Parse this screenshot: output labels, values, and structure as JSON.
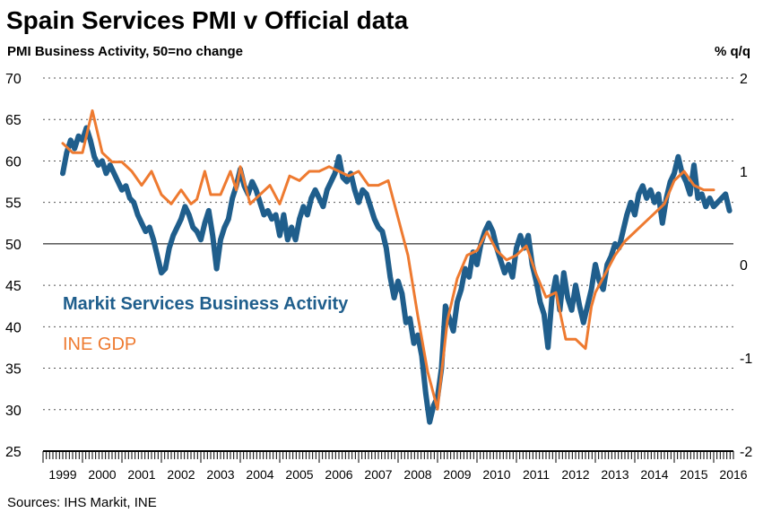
{
  "chart_data": {
    "type": "line",
    "title": "Spain Services PMI v Official data",
    "subtitle": "PMI Business Activity, 50=no change",
    "right_axis_label": "% q/q",
    "source": "Sources: IHS Markit, INE",
    "left_axis": {
      "min": 25,
      "max": 70,
      "ticks": [
        "70",
        "65",
        "60",
        "55",
        "50",
        "45",
        "40",
        "35",
        "30",
        "25"
      ]
    },
    "right_axis": {
      "min": -2,
      "max": 2,
      "ticks": [
        "2",
        "1",
        "0",
        "-1",
        "-2"
      ]
    },
    "reference_line": 50,
    "x_range": [
      1999,
      2016.5
    ],
    "years": [
      "1999",
      "2000",
      "2001",
      "2002",
      "2003",
      "2004",
      "2005",
      "2006",
      "2007",
      "2008",
      "2009",
      "2010",
      "2011",
      "2012",
      "2013",
      "2014",
      "2015",
      "2016"
    ],
    "series": [
      {
        "name": "Markit Services Business Activity",
        "axis": "left",
        "color": "#1f5e8c",
        "points": [
          [
            1999.5,
            58.5
          ],
          [
            1999.6,
            61.0
          ],
          [
            1999.7,
            62.5
          ],
          [
            1999.8,
            61.5
          ],
          [
            1999.9,
            63.0
          ],
          [
            2000.0,
            62.5
          ],
          [
            2000.1,
            64.0
          ],
          [
            2000.2,
            62.5
          ],
          [
            2000.3,
            60.5
          ],
          [
            2000.4,
            59.5
          ],
          [
            2000.5,
            60.0
          ],
          [
            2000.6,
            58.5
          ],
          [
            2000.7,
            59.5
          ],
          [
            2000.8,
            58.5
          ],
          [
            2000.9,
            57.5
          ],
          [
            2001.0,
            56.5
          ],
          [
            2001.1,
            57.0
          ],
          [
            2001.2,
            55.5
          ],
          [
            2001.3,
            55.0
          ],
          [
            2001.4,
            53.5
          ],
          [
            2001.5,
            52.5
          ],
          [
            2001.6,
            51.5
          ],
          [
            2001.7,
            52.0
          ],
          [
            2001.8,
            50.5
          ],
          [
            2001.9,
            48.5
          ],
          [
            2002.0,
            46.5
          ],
          [
            2002.1,
            47.0
          ],
          [
            2002.2,
            49.5
          ],
          [
            2002.3,
            51.0
          ],
          [
            2002.4,
            52.0
          ],
          [
            2002.5,
            53.0
          ],
          [
            2002.6,
            54.5
          ],
          [
            2002.7,
            53.5
          ],
          [
            2002.8,
            52.0
          ],
          [
            2002.9,
            51.5
          ],
          [
            2003.0,
            50.5
          ],
          [
            2003.1,
            52.5
          ],
          [
            2003.2,
            54.0
          ],
          [
            2003.3,
            51.0
          ],
          [
            2003.4,
            47.0
          ],
          [
            2003.5,
            50.5
          ],
          [
            2003.6,
            52.0
          ],
          [
            2003.7,
            53.0
          ],
          [
            2003.8,
            55.5
          ],
          [
            2003.9,
            57.0
          ],
          [
            2004.0,
            59.0
          ],
          [
            2004.1,
            57.0
          ],
          [
            2004.2,
            56.0
          ],
          [
            2004.3,
            57.5
          ],
          [
            2004.4,
            56.5
          ],
          [
            2004.5,
            55.0
          ],
          [
            2004.6,
            53.5
          ],
          [
            2004.7,
            54.0
          ],
          [
            2004.8,
            53.0
          ],
          [
            2004.9,
            53.5
          ],
          [
            2005.0,
            51.0
          ],
          [
            2005.1,
            53.5
          ],
          [
            2005.2,
            50.5
          ],
          [
            2005.3,
            52.0
          ],
          [
            2005.4,
            50.5
          ],
          [
            2005.5,
            53.0
          ],
          [
            2005.6,
            54.5
          ],
          [
            2005.7,
            53.5
          ],
          [
            2005.8,
            55.5
          ],
          [
            2005.9,
            56.5
          ],
          [
            2006.0,
            55.5
          ],
          [
            2006.1,
            54.5
          ],
          [
            2006.2,
            56.5
          ],
          [
            2006.3,
            57.5
          ],
          [
            2006.4,
            58.5
          ],
          [
            2006.5,
            60.5
          ],
          [
            2006.6,
            58.0
          ],
          [
            2006.7,
            57.5
          ],
          [
            2006.8,
            58.5
          ],
          [
            2006.9,
            56.5
          ],
          [
            2007.0,
            55.0
          ],
          [
            2007.1,
            56.5
          ],
          [
            2007.2,
            56.0
          ],
          [
            2007.3,
            54.5
          ],
          [
            2007.4,
            53.0
          ],
          [
            2007.5,
            52.0
          ],
          [
            2007.6,
            51.5
          ],
          [
            2007.7,
            49.5
          ],
          [
            2007.8,
            46.0
          ],
          [
            2007.9,
            43.5
          ],
          [
            2008.0,
            45.5
          ],
          [
            2008.1,
            44.0
          ],
          [
            2008.2,
            40.5
          ],
          [
            2008.3,
            41.0
          ],
          [
            2008.4,
            38.0
          ],
          [
            2008.5,
            39.0
          ],
          [
            2008.6,
            36.5
          ],
          [
            2008.7,
            32.0
          ],
          [
            2008.8,
            28.5
          ],
          [
            2008.9,
            30.5
          ],
          [
            2009.0,
            31.5
          ],
          [
            2009.1,
            35.0
          ],
          [
            2009.2,
            42.5
          ],
          [
            2009.3,
            41.0
          ],
          [
            2009.4,
            39.5
          ],
          [
            2009.5,
            43.0
          ],
          [
            2009.6,
            44.5
          ],
          [
            2009.7,
            47.0
          ],
          [
            2009.8,
            46.0
          ],
          [
            2009.9,
            49.0
          ],
          [
            2010.0,
            47.5
          ],
          [
            2010.1,
            50.0
          ],
          [
            2010.2,
            51.5
          ],
          [
            2010.3,
            52.5
          ],
          [
            2010.4,
            51.5
          ],
          [
            2010.5,
            49.5
          ],
          [
            2010.6,
            48.0
          ],
          [
            2010.7,
            46.5
          ],
          [
            2010.8,
            47.5
          ],
          [
            2010.9,
            46.0
          ],
          [
            2011.0,
            49.5
          ],
          [
            2011.1,
            51.0
          ],
          [
            2011.2,
            49.5
          ],
          [
            2011.3,
            51.0
          ],
          [
            2011.4,
            47.5
          ],
          [
            2011.5,
            45.5
          ],
          [
            2011.6,
            43.0
          ],
          [
            2011.7,
            41.5
          ],
          [
            2011.8,
            37.5
          ],
          [
            2011.9,
            43.5
          ],
          [
            2012.0,
            46.0
          ],
          [
            2012.1,
            42.0
          ],
          [
            2012.2,
            46.5
          ],
          [
            2012.3,
            43.5
          ],
          [
            2012.4,
            42.0
          ],
          [
            2012.5,
            45.0
          ],
          [
            2012.6,
            42.5
          ],
          [
            2012.7,
            40.5
          ],
          [
            2012.8,
            42.5
          ],
          [
            2012.9,
            44.5
          ],
          [
            2013.0,
            47.5
          ],
          [
            2013.1,
            45.5
          ],
          [
            2013.2,
            44.5
          ],
          [
            2013.3,
            47.5
          ],
          [
            2013.4,
            48.5
          ],
          [
            2013.5,
            50.0
          ],
          [
            2013.6,
            49.5
          ],
          [
            2013.7,
            51.5
          ],
          [
            2013.8,
            53.5
          ],
          [
            2013.9,
            55.0
          ],
          [
            2014.0,
            53.5
          ],
          [
            2014.1,
            56.0
          ],
          [
            2014.2,
            57.0
          ],
          [
            2014.3,
            55.5
          ],
          [
            2014.4,
            56.5
          ],
          [
            2014.5,
            55.0
          ],
          [
            2014.6,
            56.0
          ],
          [
            2014.7,
            52.5
          ],
          [
            2014.8,
            55.5
          ],
          [
            2014.9,
            57.5
          ],
          [
            2015.0,
            58.5
          ],
          [
            2015.1,
            60.5
          ],
          [
            2015.2,
            58.5
          ],
          [
            2015.3,
            57.5
          ],
          [
            2015.4,
            56.0
          ],
          [
            2015.5,
            59.5
          ],
          [
            2015.6,
            55.5
          ],
          [
            2015.7,
            56.0
          ],
          [
            2015.8,
            54.5
          ],
          [
            2015.9,
            55.5
          ],
          [
            2016.0,
            54.5
          ],
          [
            2016.1,
            55.0
          ],
          [
            2016.2,
            55.5
          ],
          [
            2016.3,
            56.0
          ],
          [
            2016.4,
            54.0
          ]
        ]
      },
      {
        "name": "INE GDP",
        "axis": "right",
        "color": "#ee7a30",
        "points": [
          [
            1999.5,
            1.3
          ],
          [
            1999.75,
            1.2
          ],
          [
            2000.0,
            1.2
          ],
          [
            2000.25,
            1.65
          ],
          [
            2000.5,
            1.2
          ],
          [
            2000.75,
            1.1
          ],
          [
            2001.0,
            1.1
          ],
          [
            2001.25,
            1.0
          ],
          [
            2001.5,
            0.85
          ],
          [
            2001.75,
            1.0
          ],
          [
            2002.0,
            0.75
          ],
          [
            2002.25,
            0.65
          ],
          [
            2002.5,
            0.8
          ],
          [
            2002.75,
            0.65
          ],
          [
            2002.9,
            0.7
          ],
          [
            2003.1,
            1.0
          ],
          [
            2003.25,
            0.75
          ],
          [
            2003.5,
            0.75
          ],
          [
            2003.75,
            1.0
          ],
          [
            2003.9,
            0.8
          ],
          [
            2004.0,
            1.05
          ],
          [
            2004.25,
            0.65
          ],
          [
            2004.5,
            0.75
          ],
          [
            2004.75,
            0.85
          ],
          [
            2005.0,
            0.65
          ],
          [
            2005.25,
            0.95
          ],
          [
            2005.5,
            0.9
          ],
          [
            2005.75,
            1.0
          ],
          [
            2006.0,
            1.0
          ],
          [
            2006.25,
            1.05
          ],
          [
            2006.5,
            1.0
          ],
          [
            2006.75,
            0.95
          ],
          [
            2007.0,
            1.0
          ],
          [
            2007.25,
            0.85
          ],
          [
            2007.5,
            0.85
          ],
          [
            2007.75,
            0.9
          ],
          [
            2008.0,
            0.5
          ],
          [
            2008.25,
            0.1
          ],
          [
            2008.5,
            -0.55
          ],
          [
            2008.75,
            -1.15
          ],
          [
            2009.0,
            -1.55
          ],
          [
            2009.25,
            -0.6
          ],
          [
            2009.5,
            -0.15
          ],
          [
            2009.75,
            0.1
          ],
          [
            2010.0,
            0.15
          ],
          [
            2010.25,
            0.35
          ],
          [
            2010.5,
            0.15
          ],
          [
            2010.75,
            0.05
          ],
          [
            2011.0,
            0.1
          ],
          [
            2011.25,
            0.2
          ],
          [
            2011.5,
            -0.1
          ],
          [
            2011.75,
            -0.35
          ],
          [
            2012.0,
            -0.3
          ],
          [
            2012.25,
            -0.8
          ],
          [
            2012.5,
            -0.8
          ],
          [
            2012.75,
            -0.9
          ],
          [
            2012.9,
            -0.45
          ],
          [
            2013.0,
            -0.3
          ],
          [
            2013.25,
            -0.1
          ],
          [
            2013.5,
            0.1
          ],
          [
            2013.75,
            0.25
          ],
          [
            2014.0,
            0.35
          ],
          [
            2014.25,
            0.45
          ],
          [
            2014.5,
            0.55
          ],
          [
            2014.75,
            0.65
          ],
          [
            2015.0,
            0.9
          ],
          [
            2015.25,
            1.0
          ],
          [
            2015.5,
            0.85
          ],
          [
            2015.75,
            0.8
          ],
          [
            2016.0,
            0.8
          ]
        ]
      }
    ]
  }
}
